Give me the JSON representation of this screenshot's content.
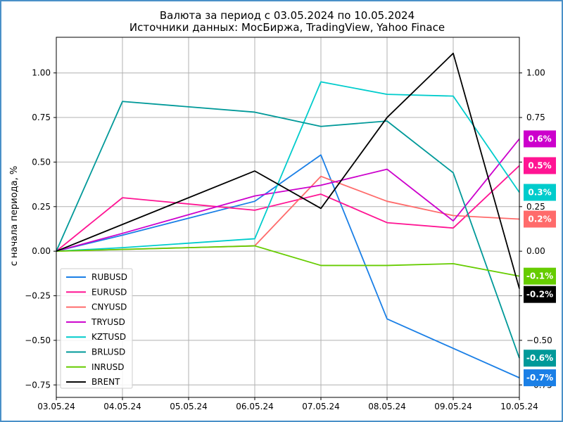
{
  "chart_data": {
    "type": "line",
    "title": "Валюта за период с 03.05.2024 по 10.05.2024",
    "subtitle": "Источники данных: МосБиржа, TradingView, Yahoo Finace",
    "xlabel": "",
    "ylabel": "с начала периода, %",
    "categories": [
      "03.05.24",
      "04.05.24",
      "05.05.24",
      "06.05.24",
      "07.05.24",
      "08.05.24",
      "09.05.24",
      "10.05.24"
    ],
    "ylim": [
      -0.82,
      1.2
    ],
    "yticks": [
      -0.75,
      -0.5,
      -0.25,
      0.0,
      0.25,
      0.5,
      0.75,
      1.0
    ],
    "ytick_labels": [
      "−0.75",
      "−0.50",
      "−0.25",
      "0.00",
      "0.25",
      "0.50",
      "0.75",
      "1.00"
    ],
    "grid": true,
    "legend_position": "bottom-left",
    "series": [
      {
        "name": "RUBUSD",
        "color": "#1a7fe6",
        "x": [
          0,
          1,
          3,
          4,
          5,
          7
        ],
        "values": [
          0.0,
          0.09,
          0.28,
          0.54,
          -0.38,
          -0.71
        ],
        "badge": "-0.7%"
      },
      {
        "name": "EURUSD",
        "color": "#ff1493",
        "x": [
          0,
          1,
          3,
          4,
          5,
          6,
          7
        ],
        "values": [
          0.0,
          0.3,
          0.23,
          0.32,
          0.16,
          0.13,
          0.48
        ],
        "badge": "0.5%"
      },
      {
        "name": "CNYUSD",
        "color": "#ff6b6b",
        "x": [
          0,
          1,
          3,
          4,
          5,
          6,
          7
        ],
        "values": [
          0.0,
          0.01,
          0.03,
          0.42,
          0.28,
          0.2,
          0.18
        ],
        "badge": "0.2%"
      },
      {
        "name": "TRYUSD",
        "color": "#cc00cc",
        "x": [
          0,
          1,
          3,
          4,
          5,
          6,
          7
        ],
        "values": [
          0.0,
          0.1,
          0.31,
          0.37,
          0.46,
          0.17,
          0.63
        ],
        "badge": "0.6%"
      },
      {
        "name": "KZTUSD",
        "color": "#00cccc",
        "x": [
          0,
          1,
          3,
          4,
          5,
          6,
          7
        ],
        "values": [
          0.0,
          0.02,
          0.07,
          0.95,
          0.88,
          0.87,
          0.33
        ],
        "badge": "0.3%"
      },
      {
        "name": "BRLUSD",
        "color": "#009999",
        "x": [
          0,
          1,
          3,
          4,
          5,
          6,
          7
        ],
        "values": [
          0.0,
          0.84,
          0.78,
          0.7,
          0.73,
          0.44,
          -0.6
        ],
        "badge": "-0.6%"
      },
      {
        "name": "INRUSD",
        "color": "#66cc00",
        "x": [
          0,
          1,
          3,
          4,
          5,
          6,
          7
        ],
        "values": [
          0.0,
          0.01,
          0.03,
          -0.08,
          -0.08,
          -0.07,
          -0.14
        ],
        "badge": "-0.1%"
      },
      {
        "name": "BRENT",
        "color": "#000000",
        "x": [
          0,
          3,
          4,
          5,
          6,
          7
        ],
        "values": [
          0.0,
          0.45,
          0.24,
          0.75,
          1.11,
          -0.21
        ],
        "badge": "-0.2%"
      }
    ]
  }
}
